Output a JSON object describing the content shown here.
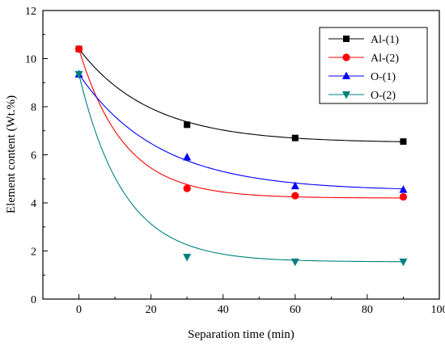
{
  "chart_data": {
    "type": "scatter",
    "title": "",
    "xlabel": "Separation time (min)",
    "ylabel": "Element content (Wt.%)",
    "xlim": [
      -10,
      100
    ],
    "ylim": [
      0,
      12
    ],
    "xticks": [
      0,
      20,
      40,
      60,
      80,
      100
    ],
    "yticks": [
      0,
      2,
      4,
      6,
      8,
      10,
      12
    ],
    "grid": false,
    "legend_position": "top-right",
    "series": [
      {
        "name": "Al-(1)",
        "marker": "square",
        "color": "#000000",
        "x": [
          0,
          30,
          60,
          90
        ],
        "y": [
          10.4,
          7.25,
          6.7,
          6.55
        ],
        "fit": {
          "a": 3.9,
          "b": 6.5,
          "k": 0.05
        }
      },
      {
        "name": "Al-(2)",
        "marker": "circle",
        "color": "#ff0000",
        "x": [
          0,
          30,
          60,
          90
        ],
        "y": [
          10.4,
          4.6,
          4.3,
          4.25
        ],
        "fit": {
          "a": 6.2,
          "b": 4.2,
          "k": 0.08
        }
      },
      {
        "name": "O-(1)",
        "marker": "triangle-up",
        "color": "#0000ff",
        "x": [
          0,
          30,
          60,
          90
        ],
        "y": [
          9.35,
          5.9,
          4.7,
          4.55
        ],
        "fit": {
          "a": 4.85,
          "b": 4.5,
          "k": 0.045
        }
      },
      {
        "name": "O-(2)",
        "marker": "triangle-down",
        "color": "#008080",
        "x": [
          0,
          30,
          60,
          90
        ],
        "y": [
          9.35,
          1.75,
          1.55,
          1.55
        ],
        "fit": {
          "a": 7.8,
          "b": 1.55,
          "k": 0.08
        }
      }
    ]
  }
}
